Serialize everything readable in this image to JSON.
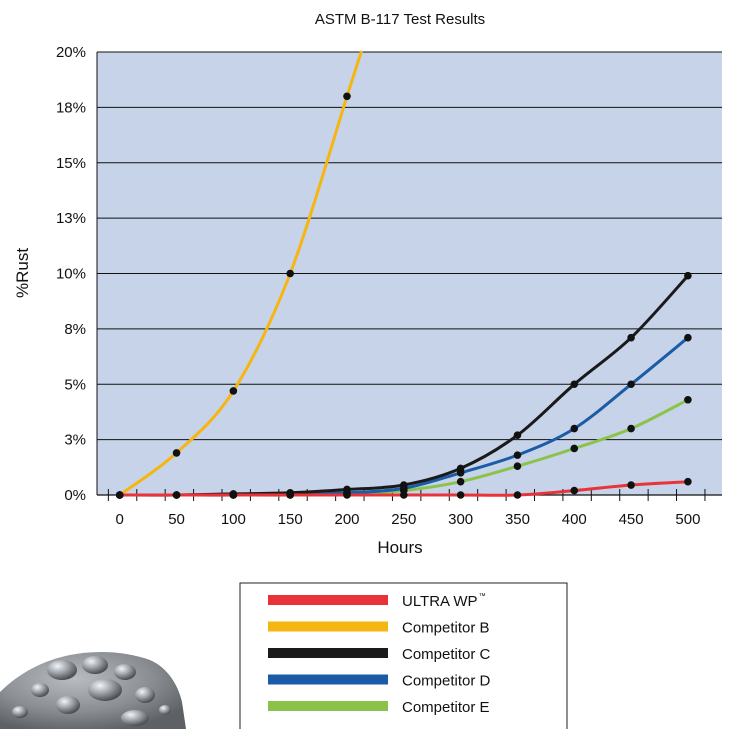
{
  "chart_data": {
    "type": "line",
    "title": "ASTM B-117 Test Results",
    "xlabel": "Hours",
    "ylabel": "%Rust",
    "x": [
      0,
      50,
      100,
      150,
      200,
      250,
      300,
      350,
      400,
      450,
      500
    ],
    "x_tick_labels": [
      "0",
      "50",
      "100",
      "150",
      "200",
      "250",
      "300",
      "350",
      "400",
      "450",
      "500"
    ],
    "xlim": [
      -20,
      530
    ],
    "ylim": [
      0,
      20
    ],
    "y_ticks": [
      0,
      2.5,
      5,
      7.5,
      10,
      12.5,
      15,
      17.5,
      20
    ],
    "y_tick_labels": [
      "0%",
      "3%",
      "5%",
      "8%",
      "10%",
      "13%",
      "15%",
      "18%",
      "20%"
    ],
    "grid": "horizontal",
    "legend_position": "bottom",
    "plot_background": "#c6d3e9",
    "series": [
      {
        "name": "ULTRA WP",
        "trademark": "™",
        "color": "#e8333a",
        "values": [
          0,
          0,
          0,
          0,
          0,
          0,
          0,
          0,
          0.2,
          0.45,
          0.6
        ]
      },
      {
        "name": "Competitor B",
        "color": "#f6b611",
        "values": [
          0,
          1.9,
          4.7,
          10.0,
          18.0,
          null,
          null,
          null,
          null,
          null,
          null
        ]
      },
      {
        "name": "Competitor C",
        "color": "#1a1a1a",
        "values": [
          0,
          0,
          0.05,
          0.1,
          0.25,
          0.45,
          1.2,
          2.7,
          5.0,
          7.1,
          9.9
        ]
      },
      {
        "name": "Competitor D",
        "color": "#1a5da6",
        "values": [
          0,
          0,
          0,
          0.05,
          0.1,
          0.3,
          1.0,
          1.8,
          3.0,
          5.0,
          7.1
        ]
      },
      {
        "name": "Competitor E",
        "color": "#8bc34a",
        "values": [
          0,
          0,
          0,
          0,
          0.05,
          0.2,
          0.6,
          1.3,
          2.1,
          3.0,
          4.3
        ]
      }
    ]
  }
}
